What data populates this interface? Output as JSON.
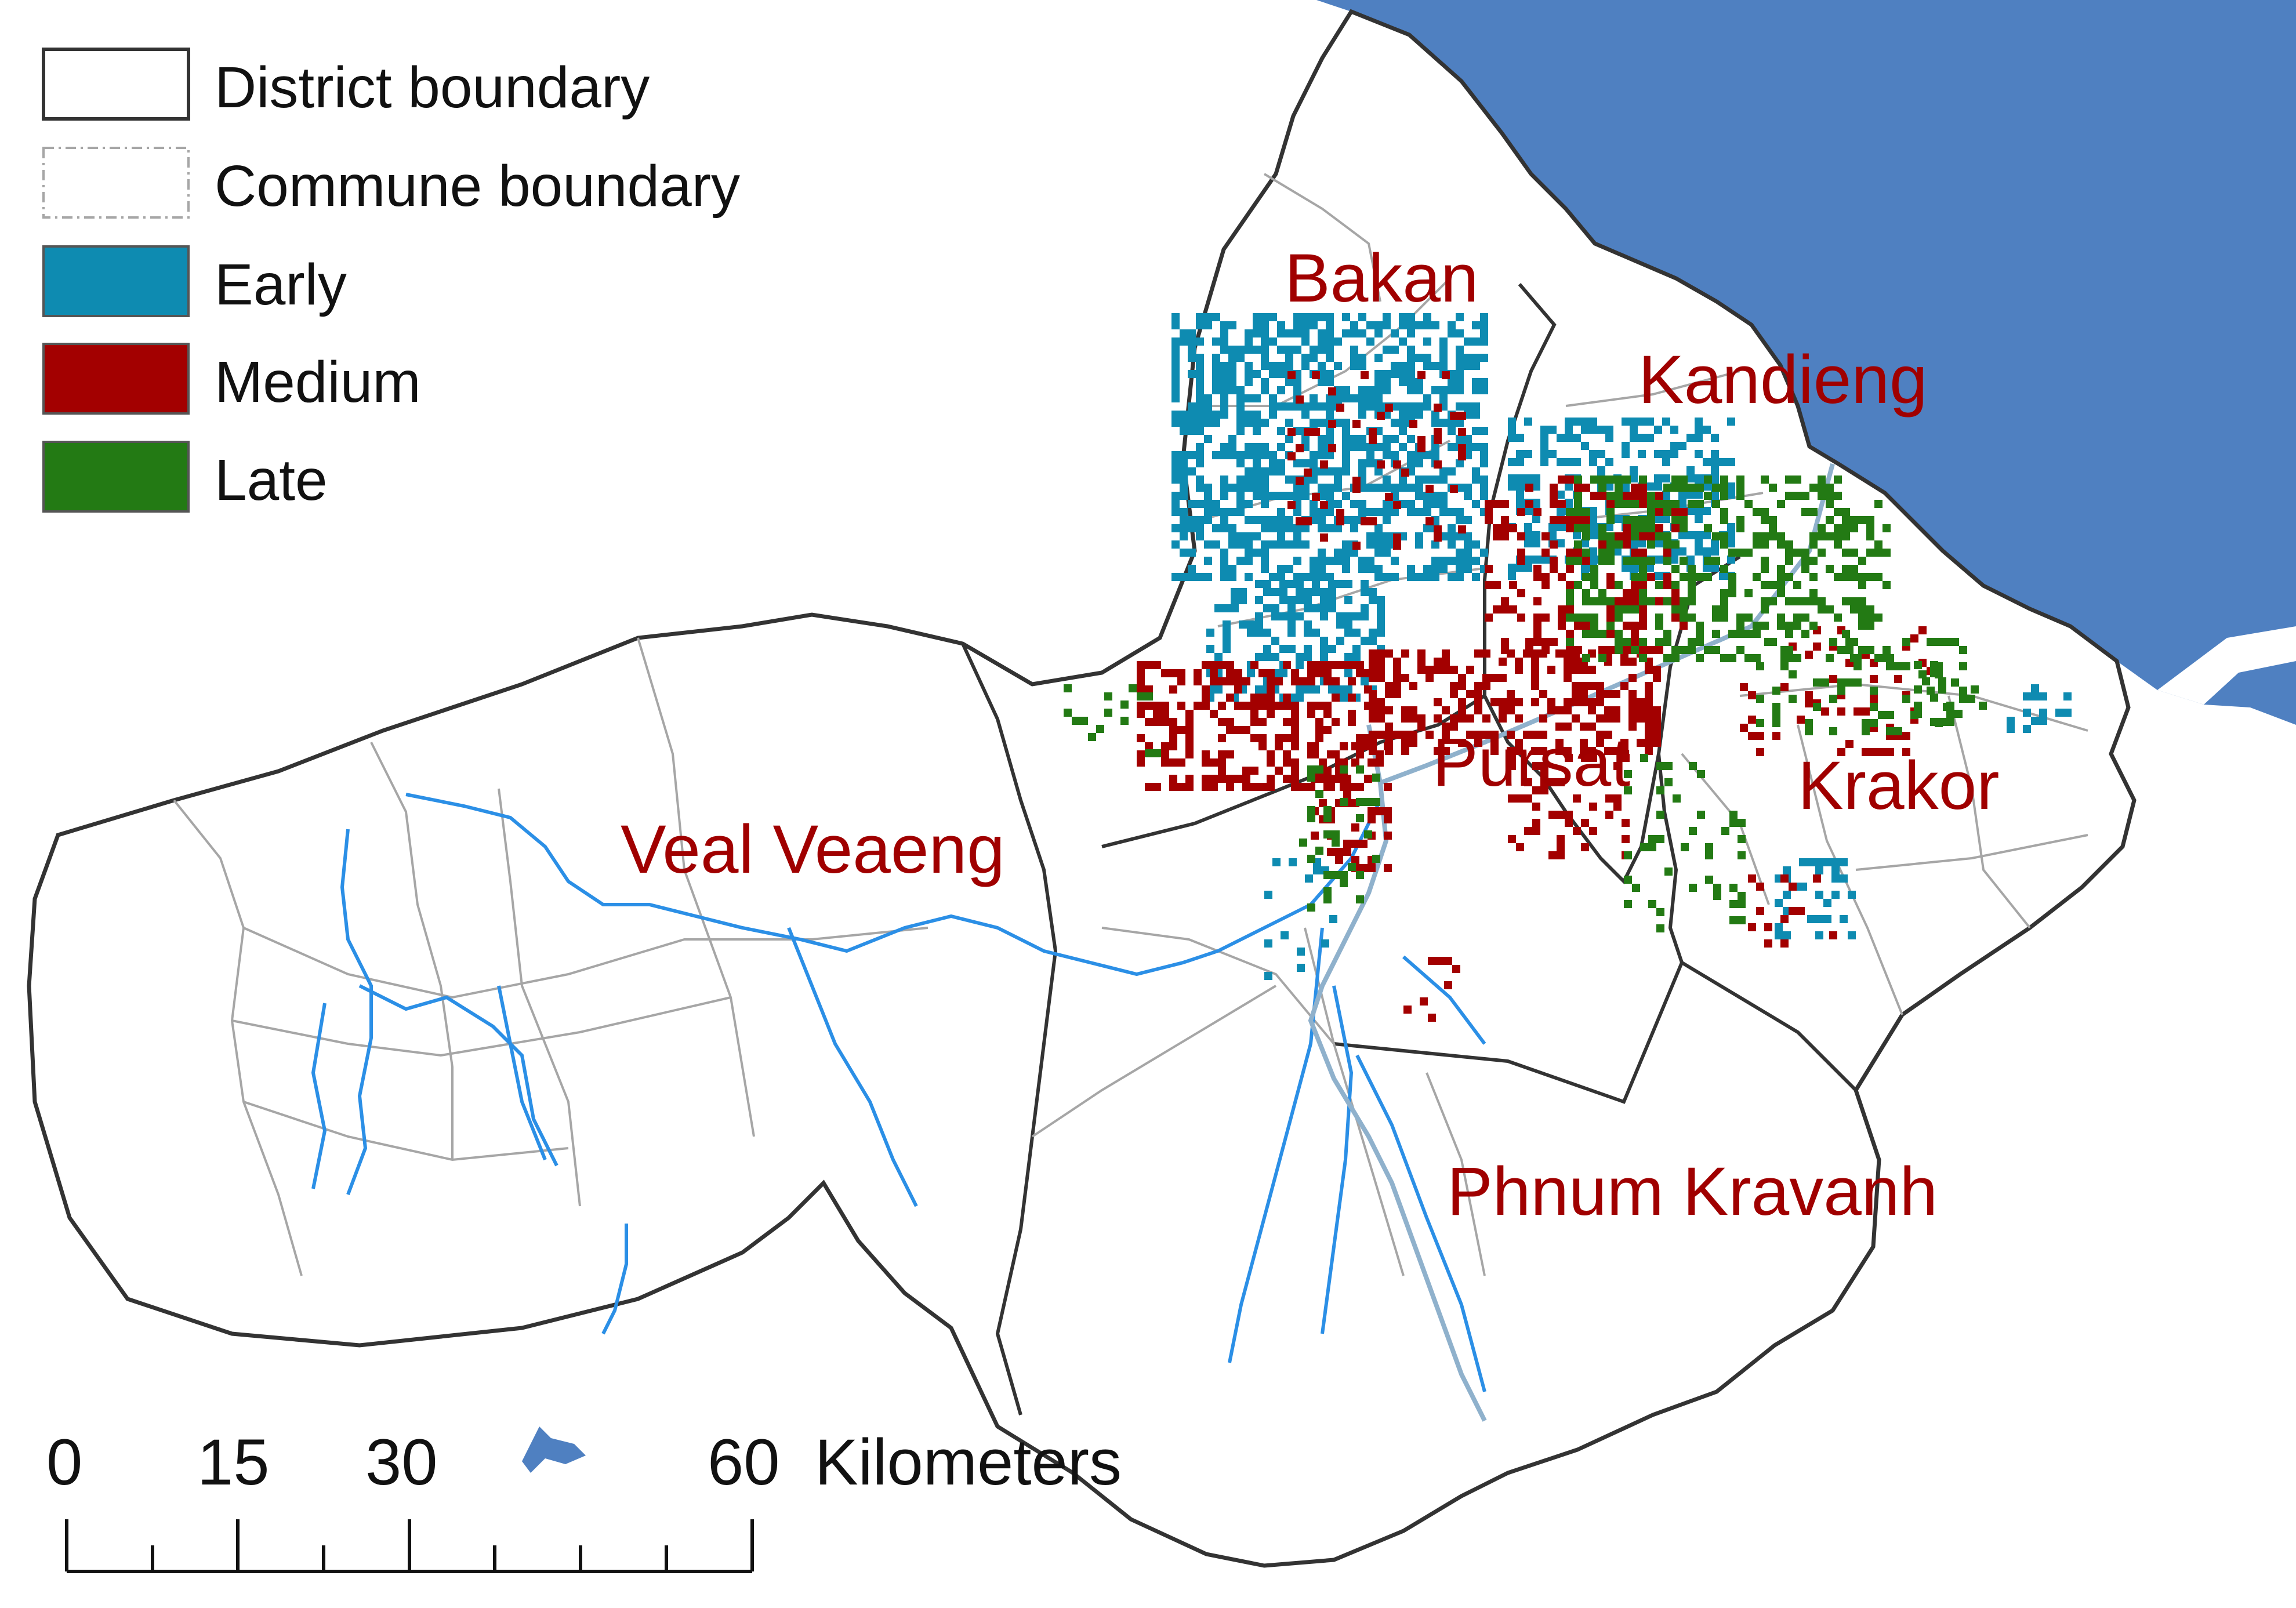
{
  "legend": {
    "district": "District boundary",
    "commune": "Commune boundary",
    "early": "Early",
    "medium": "Medium",
    "late": "Late"
  },
  "districts": {
    "bakan": "Bakan",
    "kandieng": "Kandieng",
    "pursat": "Pursat",
    "krakor": "Krakor",
    "veal_veaeng": "Veal Veaeng",
    "phnum_kravanh": "Phnum Kravanh"
  },
  "scalebar": {
    "t0": "0",
    "t15": "15",
    "t30": "30",
    "t60": "60",
    "unit": "Kilometers"
  },
  "colors": {
    "early": "#0e8bb1",
    "medium": "#a30000",
    "late": "#237a14",
    "water": "#4f80c1",
    "river": "#2b8fe6",
    "district_line": "#333333",
    "commune_line": "#a6a6a6"
  }
}
